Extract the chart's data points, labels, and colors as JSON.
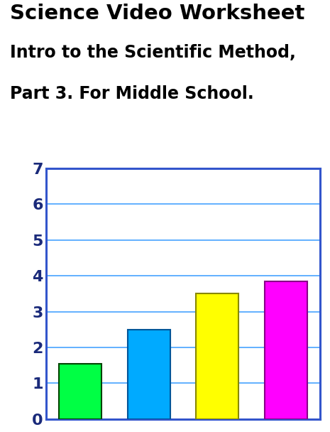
{
  "title_line1": "Science Video Worksheet",
  "title_line2": "Intro to the Scientific Method,",
  "title_line3": "Part 3. For Middle School.",
  "bar_values": [
    1.55,
    2.5,
    3.5,
    3.85
  ],
  "bar_colors": [
    "#00ff44",
    "#00aaff",
    "#ffff00",
    "#ff00ff"
  ],
  "bar_edge_colors": [
    "#004400",
    "#005599",
    "#888800",
    "#880088"
  ],
  "ylim": [
    0,
    7
  ],
  "yticks": [
    0,
    1,
    2,
    3,
    4,
    5,
    6,
    7
  ],
  "background_color": "#ffffff",
  "spine_color": "#3355cc",
  "grid_color": "#55aaff",
  "tick_label_color": "#1a2a7a",
  "tick_fontsize": 16,
  "title_fontsize_1": 21,
  "title_fontsize_2": 17
}
